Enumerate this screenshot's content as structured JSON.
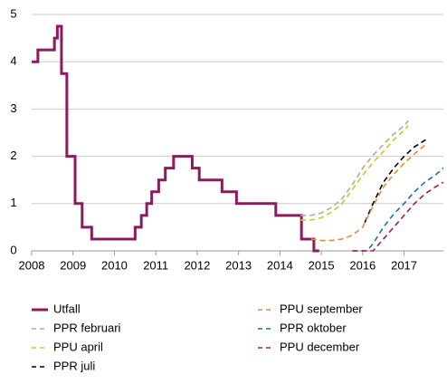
{
  "chart_data": {
    "type": "line",
    "xlim": [
      2008,
      2017.95
    ],
    "ylim": [
      0,
      5
    ],
    "xticks": [
      2008,
      2009,
      2010,
      2011,
      2012,
      2013,
      2014,
      2015,
      2016,
      2017
    ],
    "yticks": [
      0,
      1,
      2,
      3,
      4,
      5
    ],
    "grid": true,
    "series": [
      {
        "name": "Utfall",
        "color": "#8b1a5e",
        "style": "solid",
        "x": [
          2008,
          2008.15,
          2008.15,
          2008.55,
          2008.55,
          2008.62,
          2008.62,
          2008.72,
          2008.72,
          2008.77,
          2008.77,
          2008.85,
          2008.85,
          2009.05,
          2009.05,
          2009.22,
          2009.22,
          2009.45,
          2009.45,
          2010.5,
          2010.5,
          2010.65,
          2010.65,
          2010.78,
          2010.78,
          2010.9,
          2010.9,
          2011.07,
          2011.07,
          2011.23,
          2011.23,
          2011.43,
          2011.43,
          2011.88,
          2011.88,
          2012.05,
          2012.05,
          2012.6,
          2012.6,
          2012.95,
          2012.95,
          2013.9,
          2013.9,
          2014.52,
          2014.52,
          2014.82,
          2014.82,
          2014.95
        ],
        "values": [
          4,
          4,
          4.25,
          4.25,
          4.5,
          4.5,
          4.75,
          4.75,
          3.75,
          3.75,
          3.75,
          3.75,
          2,
          2,
          1,
          1,
          0.5,
          0.5,
          0.25,
          0.25,
          0.5,
          0.5,
          0.75,
          0.75,
          1,
          1,
          1.25,
          1.25,
          1.5,
          1.5,
          1.75,
          1.75,
          2,
          2,
          1.75,
          1.75,
          1.5,
          1.5,
          1.25,
          1.25,
          1,
          1,
          0.75,
          0.75,
          0.25,
          0.25,
          0,
          0
        ]
      },
      {
        "name": "PPR februari",
        "color": "#aaaaaa",
        "style": "dashed",
        "x": [
          2014.5,
          2014.75,
          2015,
          2015.25,
          2015.5,
          2015.75,
          2016,
          2016.25,
          2016.5,
          2016.75,
          2017,
          2017.1
        ],
        "values": [
          0.75,
          0.75,
          0.8,
          0.92,
          1.1,
          1.4,
          1.75,
          2.02,
          2.25,
          2.47,
          2.65,
          2.75
        ]
      },
      {
        "name": "PPU april",
        "color": "#c8c81e",
        "style": "dashed",
        "x": [
          2014.5,
          2014.75,
          2015,
          2015.25,
          2015.5,
          2015.75,
          2016,
          2016.25,
          2016.5,
          2016.75,
          2017,
          2017.1
        ],
        "values": [
          0.65,
          0.65,
          0.7,
          0.82,
          1,
          1.3,
          1.6,
          1.87,
          2.1,
          2.35,
          2.55,
          2.65
        ]
      },
      {
        "name": "PPR juli",
        "color": "#000000",
        "style": "dashed",
        "x": [
          2016.05,
          2016.25,
          2016.5,
          2016.75,
          2017,
          2017.25,
          2017.52
        ],
        "values": [
          0.6,
          1,
          1.45,
          1.75,
          2,
          2.2,
          2.35
        ]
      },
      {
        "name": "PPU september",
        "color": "#e8893c",
        "style": "dashed",
        "x": [
          2014.75,
          2015,
          2015.25,
          2015.5,
          2015.75,
          2016,
          2016.25,
          2016.5,
          2016.75,
          2017,
          2017.25,
          2017.52
        ],
        "values": [
          0.25,
          0.22,
          0.22,
          0.25,
          0.33,
          0.5,
          0.95,
          1.35,
          1.62,
          1.85,
          2.05,
          2.25
        ]
      },
      {
        "name": "PPR oktober",
        "color": "#1f6fa8",
        "style": "dashed",
        "x": [
          2015.75,
          2016.1,
          2016.25,
          2016.5,
          2016.75,
          2017,
          2017.25,
          2017.5,
          2017.75,
          2017.95
        ],
        "values": [
          0,
          0,
          0.15,
          0.5,
          0.78,
          1,
          1.25,
          1.45,
          1.6,
          1.75
        ]
      },
      {
        "name": "PPU december",
        "color": "#9e1d5a",
        "style": "dashed",
        "x": [
          2015.75,
          2016.25,
          2016.5,
          2016.75,
          2017,
          2017.25,
          2017.5,
          2017.75,
          2017.95
        ],
        "values": [
          0,
          0,
          0.25,
          0.5,
          0.75,
          1,
          1.2,
          1.35,
          1.45
        ]
      }
    ]
  }
}
